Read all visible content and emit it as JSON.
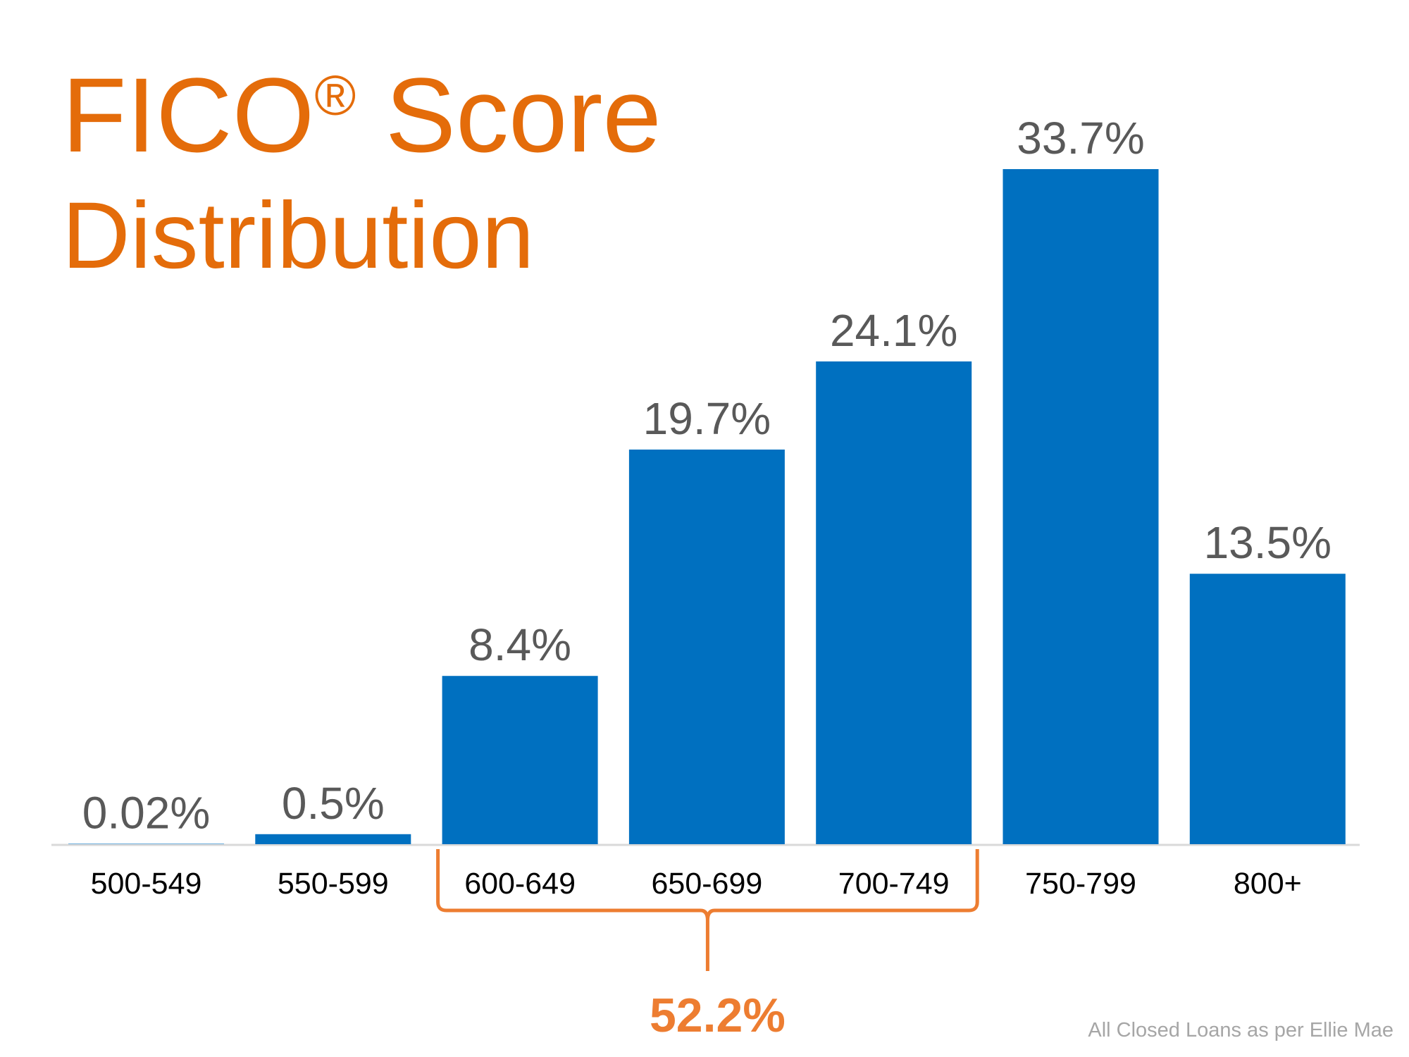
{
  "title": {
    "line1": "FICO",
    "registered": "®",
    "line1_suffix": " Score",
    "line2": "Distribution"
  },
  "chart_data": {
    "type": "bar",
    "categories": [
      "500-549",
      "550-599",
      "600-649",
      "650-699",
      "700-749",
      "750-799",
      "800+"
    ],
    "values": [
      0.02,
      0.5,
      8.4,
      19.7,
      24.1,
      33.7,
      13.5
    ],
    "data_labels": [
      "0.02%",
      "0.5%",
      "8.4%",
      "19.7%",
      "24.1%",
      "33.7%",
      "13.5%"
    ],
    "ylim": [
      0,
      33.7
    ],
    "grid": false,
    "bar_color": "#0070c0",
    "annotation": {
      "label": "52.2%",
      "range": [
        "600-649",
        "700-749"
      ],
      "color": "#ed7d31"
    }
  },
  "footer": "All Closed Loans as per Ellie Mae"
}
